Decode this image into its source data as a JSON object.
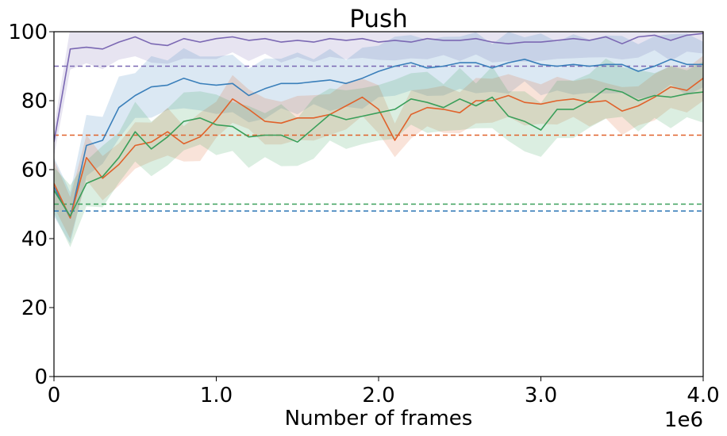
{
  "chart_data": {
    "type": "line",
    "title": "Push",
    "xlabel": "Number of frames",
    "ylabel": "",
    "x_offset_label": "1e6",
    "xlim": [
      0,
      4.0
    ],
    "ylim": [
      0,
      100
    ],
    "x_ticks": [
      0,
      1.0,
      2.0,
      3.0,
      4.0
    ],
    "x_tick_labels": [
      "0",
      "1.0",
      "2.0",
      "3.0",
      "4.0"
    ],
    "y_ticks": [
      0,
      20,
      40,
      60,
      80,
      100
    ],
    "y_tick_labels": [
      "0",
      "20",
      "40",
      "60",
      "80",
      "100"
    ],
    "grid": false,
    "x": [
      0.0,
      0.1,
      0.2,
      0.3,
      0.4,
      0.5,
      0.6,
      0.7,
      0.8,
      0.9,
      1.0,
      1.1,
      1.2,
      1.3,
      1.4,
      1.5,
      1.6,
      1.7,
      1.8,
      1.9,
      2.0,
      2.1,
      2.2,
      2.3,
      2.4,
      2.5,
      2.6,
      2.7,
      2.8,
      2.9,
      3.0,
      3.1,
      3.2,
      3.3,
      3.4,
      3.5,
      3.6,
      3.7,
      3.8,
      3.9,
      4.0
    ],
    "series": [
      {
        "color": "#7b68b3",
        "values": [
          68,
          95,
          95.5,
          95,
          97,
          98.5,
          96.5,
          96,
          98,
          97,
          98,
          98.5,
          97.5,
          98,
          97,
          97.5,
          97,
          98,
          97.5,
          98,
          97,
          97.5,
          97,
          98,
          97.5,
          97.5,
          98,
          97,
          96.5,
          97,
          97,
          97.5,
          98,
          97.5,
          98.5,
          96.5,
          98.5,
          99,
          97.5,
          99,
          99.5
        ],
        "spread": 6,
        "baseline": 90
      },
      {
        "color": "#3a7fba",
        "values": [
          55,
          46,
          67,
          68.5,
          78,
          81.5,
          84,
          84.5,
          86.5,
          85,
          84.5,
          85,
          81.5,
          83.5,
          85,
          85,
          85.5,
          86,
          85,
          86.5,
          88.5,
          90,
          91,
          89.5,
          90,
          91,
          91,
          89.5,
          91,
          92,
          90.5,
          90,
          90.5,
          90,
          90.5,
          90.5,
          88.5,
          90,
          92,
          90.5,
          90.5
        ],
        "spread": 9,
        "baseline": 48
      },
      {
        "color": "#e0622b",
        "values": [
          56,
          46,
          63.5,
          57.5,
          61.5,
          67,
          68,
          71,
          67.5,
          69.5,
          74.5,
          80.5,
          77.5,
          74,
          73.5,
          75,
          75,
          76,
          78.5,
          81,
          77.5,
          68.5,
          76,
          78,
          77.5,
          76.5,
          80,
          80,
          81.5,
          79.5,
          79,
          80,
          80.5,
          79.5,
          80,
          77,
          78.5,
          81,
          84,
          83,
          86.5
        ],
        "spread": 7,
        "baseline": 70
      },
      {
        "color": "#3a9f5a",
        "values": [
          54,
          46.5,
          56,
          58,
          63.5,
          71,
          66,
          69.5,
          74,
          75,
          73,
          72.5,
          69.5,
          70,
          70,
          68,
          72,
          76,
          74.5,
          75.5,
          76.5,
          77.5,
          80.5,
          79.5,
          78,
          80.5,
          78.5,
          81,
          75.5,
          74,
          71.5,
          77.5,
          77.5,
          80,
          83.5,
          82.5,
          80,
          81.5,
          81,
          82,
          82.5
        ],
        "spread": 9,
        "baseline": 50
      }
    ]
  }
}
